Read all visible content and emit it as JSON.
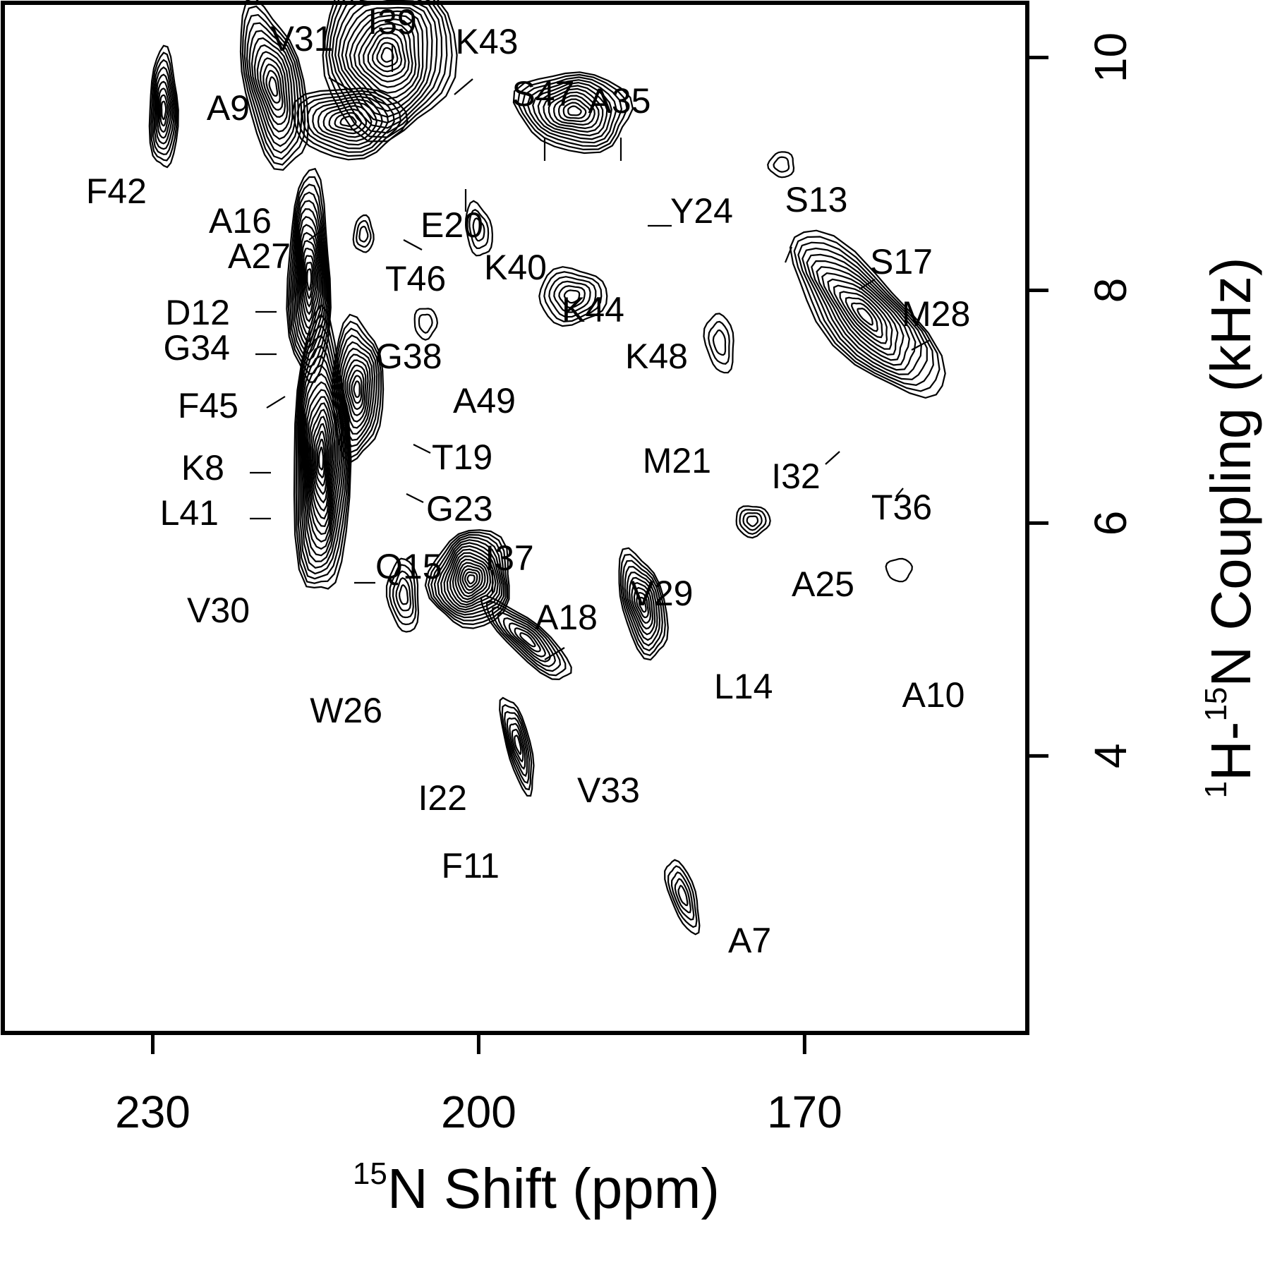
{
  "chart_data": {
    "type": "scatter",
    "subtype": "2D NMR contour spectrum (PISEMA)",
    "xlabel": "N Shift (ppm)",
    "xlabel_superscript": "15",
    "ylabel_parts": {
      "sup1": "1",
      "main1": "H-",
      "sup2": "15",
      "main2": "N Coupling (kHz)"
    },
    "xlim": [
      243.8,
      149.5
    ],
    "ylim": [
      1.62,
      10.47
    ],
    "x_ticks": [
      230,
      200,
      170
    ],
    "y_ticks": [
      4,
      6,
      8,
      10
    ],
    "x_tick_labels": [
      "230",
      "200",
      "170"
    ],
    "y_tick_labels": [
      "4",
      "6",
      "8",
      "10"
    ],
    "grid": false,
    "peaks": [
      {
        "label": "A7",
        "x": 180.9,
        "y": 2.73
      },
      {
        "label": "K8",
        "x": 216.1,
        "y": 6.97
      },
      {
        "label": "A9",
        "x": 218.9,
        "y": 9.72
      },
      {
        "label": "A10",
        "x": 161.1,
        "y": 5.61
      },
      {
        "label": "F11",
        "x": 196.5,
        "y": 3.98
      },
      {
        "label": "D12",
        "x": 215.9,
        "y": 8.5
      },
      {
        "label": "S13",
        "x": 171.9,
        "y": 9.09
      },
      {
        "label": "L14",
        "x": 184.0,
        "y": 5.22
      },
      {
        "label": "Q15",
        "x": 214.0,
        "y": 6.41
      },
      {
        "label": "A16",
        "x": 211.3,
        "y": 9.51
      },
      {
        "label": "S17",
        "x": 164.8,
        "y": 8.18
      },
      {
        "label": "A18",
        "x": 200.3,
        "y": 5.52
      },
      {
        "label": "T19",
        "x": 211.0,
        "y": 7.24
      },
      {
        "label": "E20",
        "x": 203.9,
        "y": 9.52
      },
      {
        "label": "M21",
        "x": 177.6,
        "y": 7.6
      },
      {
        "label": "I22",
        "x": 197.4,
        "y": 4.32
      },
      {
        "label": "G23",
        "x": 211.3,
        "y": 7.24
      },
      {
        "label": "Y24",
        "x": 188.9,
        "y": 9.47
      },
      {
        "label": "A25",
        "x": 174.8,
        "y": 6.02
      },
      {
        "label": "W26",
        "x": 206.9,
        "y": 5.46
      },
      {
        "label": "A27",
        "x": 214.0,
        "y": 9.55
      },
      {
        "label": "M28",
        "x": 163.3,
        "y": 7.76
      },
      {
        "label": "V29",
        "x": 186.1,
        "y": 5.42
      },
      {
        "label": "V30",
        "x": 215.6,
        "y": 6.04
      },
      {
        "label": "V31",
        "x": 208.6,
        "y": 10.13
      },
      {
        "label": "I32",
        "x": 166.1,
        "y": 7.68
      },
      {
        "label": "V33",
        "x": 196.6,
        "y": 5.11
      },
      {
        "label": "G34",
        "x": 215.9,
        "y": 8.24
      },
      {
        "label": "A35",
        "x": 190.3,
        "y": 9.55
      },
      {
        "label": "T36",
        "x": 164.0,
        "y": 7.45
      },
      {
        "label": "I37",
        "x": 200.8,
        "y": 5.62
      },
      {
        "label": "G38",
        "x": 203.9,
        "y": 7.7
      },
      {
        "label": "I39",
        "x": 208.6,
        "y": 10.15
      },
      {
        "label": "K40",
        "x": 199.9,
        "y": 8.53
      },
      {
        "label": "L41",
        "x": 215.6,
        "y": 6.93
      },
      {
        "label": "F42",
        "x": 228.7,
        "y": 9.55
      },
      {
        "label": "K43",
        "x": 206.5,
        "y": 10.01
      },
      {
        "label": "K44",
        "x": 191.4,
        "y": 7.96
      },
      {
        "label": "F45",
        "x": 215.7,
        "y": 7.55
      },
      {
        "label": "T46",
        "x": 210.5,
        "y": 8.47
      },
      {
        "label": "S47",
        "x": 191.4,
        "y": 9.55
      },
      {
        "label": "K48",
        "x": 190.4,
        "y": 7.89
      },
      {
        "label": "A49",
        "x": 204.8,
        "y": 7.71
      }
    ]
  }
}
